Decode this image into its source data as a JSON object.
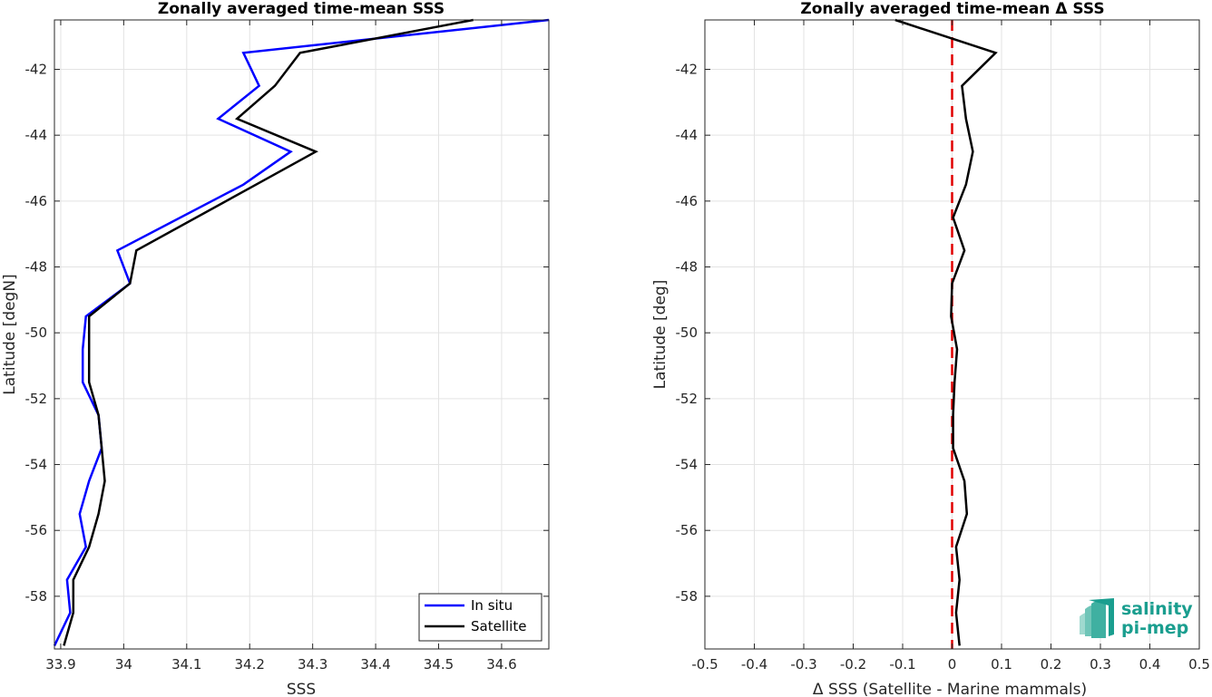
{
  "chart_data": [
    {
      "type": "line",
      "title": "Zonally averaged time-mean SSS",
      "xlabel": "SSS",
      "ylabel": "Latitude [degN]",
      "xlim": [
        33.89,
        34.675
      ],
      "ylim": [
        -59.6,
        -40.5
      ],
      "xticks": [
        33.9,
        34,
        34.1,
        34.2,
        34.3,
        34.4,
        34.5,
        34.6
      ],
      "xtick_labels": [
        "33.9",
        "34",
        "34.1",
        "34.2",
        "34.3",
        "34.4",
        "34.5",
        "34.6"
      ],
      "yticks": [
        -42,
        -44,
        -46,
        -48,
        -50,
        -52,
        -54,
        -56,
        -58
      ],
      "ytick_labels": [
        "-42",
        "-44",
        "-46",
        "-48",
        "-50",
        "-52",
        "-54",
        "-56",
        "-58"
      ],
      "grid": true,
      "legend_position": "bottom-right",
      "series": [
        {
          "name": "In situ",
          "color": "#0000ff",
          "x": [
            34.675,
            34.19,
            34.215,
            34.15,
            34.265,
            34.19,
            33.99,
            34.01,
            33.94,
            33.935,
            33.935,
            33.96,
            33.965,
            33.945,
            33.93,
            33.94,
            33.91,
            33.915,
            33.89
          ],
          "y": [
            -40.5,
            -41.5,
            -42.5,
            -43.5,
            -44.5,
            -45.5,
            -47.5,
            -48.5,
            -49.5,
            -50.5,
            -51.5,
            -52.5,
            -53.5,
            -54.5,
            -55.5,
            -56.5,
            -57.5,
            -58.5,
            -59.5
          ]
        },
        {
          "name": "Satellite",
          "color": "#000000",
          "x": [
            34.555,
            34.28,
            34.24,
            34.18,
            34.305,
            34.21,
            34.02,
            34.01,
            33.945,
            33.945,
            33.945,
            33.96,
            33.965,
            33.97,
            33.96,
            33.945,
            33.92,
            33.92,
            33.905
          ],
          "y": [
            -40.5,
            -41.5,
            -42.5,
            -43.5,
            -44.5,
            -45.5,
            -47.5,
            -48.5,
            -49.5,
            -50.5,
            -51.5,
            -52.5,
            -53.5,
            -54.5,
            -55.5,
            -56.5,
            -57.5,
            -58.5,
            -59.5
          ]
        }
      ]
    },
    {
      "type": "line",
      "title": "Zonally averaged time-mean Δ SSS",
      "xlabel": "Δ SSS (Satellite - Marine mammals)",
      "ylabel": "Latitude [deg]",
      "xlim": [
        -0.5,
        0.5
      ],
      "ylim": [
        -59.6,
        -40.5
      ],
      "xticks": [
        -0.5,
        -0.4,
        -0.3,
        -0.2,
        -0.1,
        0,
        0.1,
        0.2,
        0.3,
        0.4,
        0.5
      ],
      "xtick_labels": [
        "-0.5",
        "-0.4",
        "-0.3",
        "-0.2",
        "-0.1",
        "0",
        "0.1",
        "0.2",
        "0.3",
        "0.4",
        "0.5"
      ],
      "yticks": [
        -42,
        -44,
        -46,
        -48,
        -50,
        -52,
        -54,
        -56,
        -58
      ],
      "ytick_labels": [
        "-42",
        "-44",
        "-46",
        "-48",
        "-50",
        "-52",
        "-54",
        "-56",
        "-58"
      ],
      "grid": true,
      "zero_line_color": "#e00000",
      "series": [
        {
          "color": "#000000",
          "x": [
            -0.115,
            0.088,
            0.02,
            0.028,
            0.042,
            0.028,
            0.002,
            0.025,
            0.0,
            -0.002,
            0.01,
            0.005,
            0.002,
            0.002,
            0.025,
            0.03,
            0.008,
            0.015,
            0.008,
            0.015
          ],
          "y": [
            -40.5,
            -41.5,
            -42.5,
            -43.5,
            -44.5,
            -45.5,
            -46.5,
            -47.5,
            -48.5,
            -49.5,
            -50.5,
            -51.5,
            -52.5,
            -53.5,
            -54.5,
            -55.5,
            -56.5,
            -57.5,
            -58.5,
            -59.5
          ]
        }
      ]
    }
  ],
  "logo": {
    "line1": "salinity",
    "line2": "pi-mep",
    "color": "#1a9e8f"
  }
}
